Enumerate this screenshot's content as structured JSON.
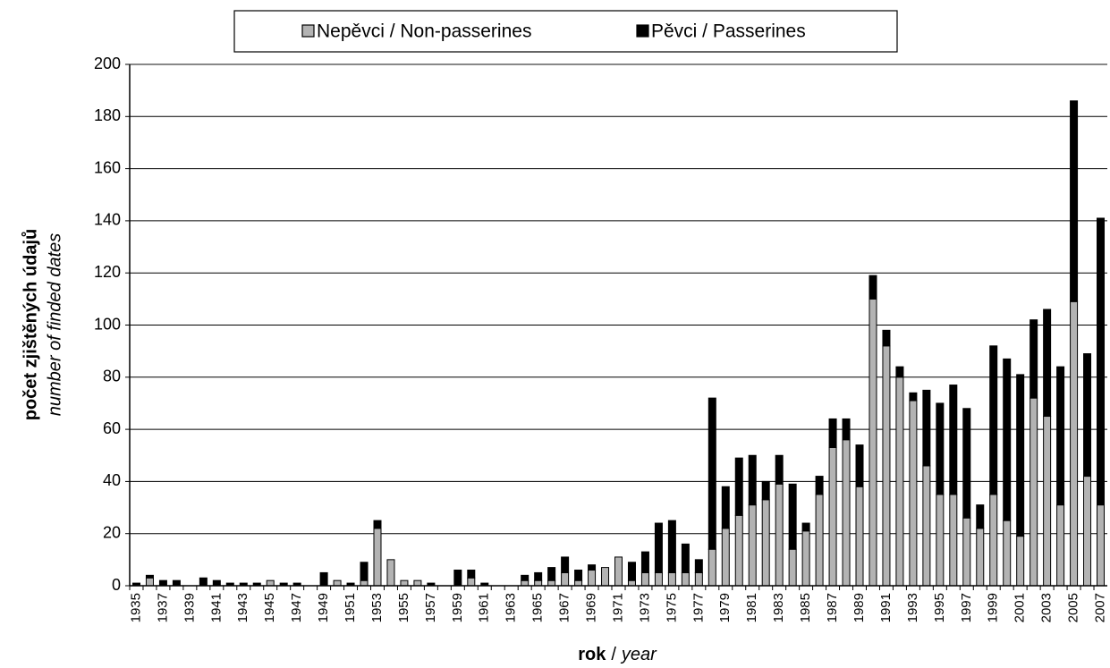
{
  "chart_data": {
    "type": "stacked_bar",
    "ylabel": [
      "počet zjištěných údajů",
      "number of finded dates"
    ],
    "xlabel": [
      "rok",
      "/",
      "year"
    ],
    "categories": [
      "1935",
      null,
      "1937",
      null,
      "1939",
      null,
      "1941",
      null,
      "1943",
      null,
      "1945",
      null,
      "1947",
      null,
      "1949",
      null,
      "1951",
      null,
      "1953",
      null,
      "1955",
      null,
      "1957",
      null,
      "1959",
      null,
      "1961",
      null,
      "1963",
      null,
      "1965",
      null,
      "1967",
      null,
      "1969",
      null,
      "1971",
      null,
      "1973",
      null,
      "1975",
      null,
      "1977",
      null,
      "1979",
      null,
      "1981",
      null,
      "1983",
      null,
      "1985",
      null,
      "1987",
      null,
      "1989",
      null,
      "1991",
      null,
      "1993",
      null,
      "1995",
      null,
      "1997",
      null,
      "1999",
      null,
      "2001",
      null,
      "2003",
      null,
      "2005",
      null,
      "2007"
    ],
    "series": [
      {
        "name": "Nepěvci / Non-passerines",
        "color": "#b3b3b3",
        "values": [
          0,
          3,
          0,
          0,
          0,
          0,
          0,
          0,
          0,
          0,
          2,
          0,
          0,
          0,
          0,
          2,
          0,
          2,
          22,
          10,
          2,
          2,
          0,
          0,
          0,
          3,
          0,
          0,
          0,
          2,
          2,
          2,
          5,
          2,
          6,
          7,
          11,
          2,
          5,
          5,
          5,
          5,
          5,
          14,
          22,
          27,
          31,
          33,
          39,
          14,
          21,
          35,
          53,
          56,
          38,
          110,
          92,
          80,
          71,
          46,
          35,
          35,
          26,
          22,
          35,
          25,
          19,
          72,
          65,
          31,
          109,
          42,
          31
        ]
      },
      {
        "name": "Pěvci / Passerines",
        "color": "#000000",
        "values": [
          1,
          1,
          2,
          2,
          0,
          3,
          2,
          1,
          1,
          1,
          0,
          1,
          1,
          0,
          5,
          0,
          1,
          7,
          3,
          0,
          0,
          0,
          1,
          0,
          6,
          3,
          1,
          0,
          0,
          2,
          3,
          5,
          6,
          4,
          2,
          0,
          0,
          7,
          8,
          19,
          20,
          11,
          5,
          58,
          16,
          22,
          19,
          7,
          11,
          25,
          3,
          7,
          11,
          8,
          16,
          9,
          6,
          4,
          3,
          29,
          35,
          42,
          42,
          9,
          57,
          62,
          62,
          30,
          41,
          53,
          77,
          47,
          110
        ]
      }
    ],
    "ylim": [
      0,
      200
    ],
    "yticks": [
      0,
      20,
      40,
      60,
      80,
      100,
      120,
      140,
      160,
      180,
      200
    ],
    "grid": true,
    "legend": "top"
  }
}
